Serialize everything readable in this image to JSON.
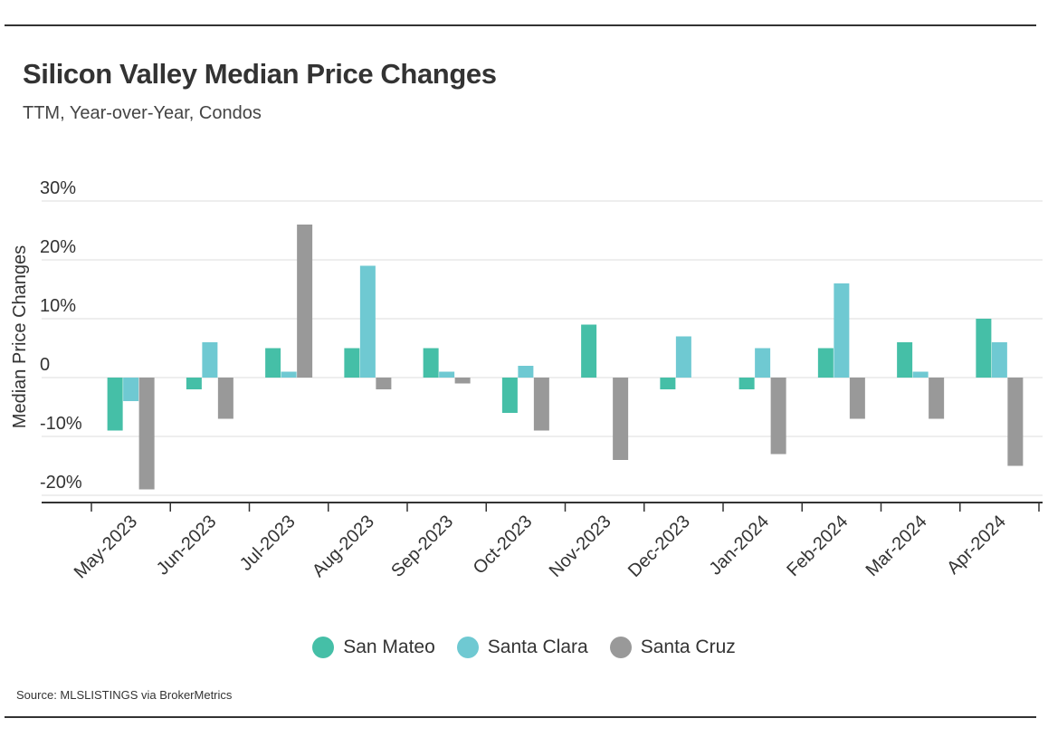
{
  "header": {
    "title": "Silicon Valley Median Price Changes",
    "subtitle": "TTM, Year-over-Year, Condos"
  },
  "source": "Source:  MLSLISTINGS via BrokerMetrics",
  "colors": {
    "San Mateo": "#45bfa7",
    "Santa Clara": "#6fc9d2",
    "Santa Cruz": "#999999",
    "grid": "#dddddd",
    "axis": "#333333"
  },
  "chart_data": {
    "type": "bar",
    "title": "Silicon Valley Median Price Changes",
    "subtitle": "TTM, Year-over-Year, Condos",
    "xlabel": "",
    "ylabel": "Median Price Changes",
    "ylim": [
      -22,
      30
    ],
    "yticks": [
      -20,
      -10,
      0,
      10,
      20,
      30
    ],
    "ytick_labels": [
      "-20%",
      "-10%",
      "0",
      "10%",
      "20%",
      "30%"
    ],
    "grid": true,
    "legend_position": "bottom",
    "categories": [
      "May-2023",
      "Jun-2023",
      "Jul-2023",
      "Aug-2023",
      "Sep-2023",
      "Oct-2023",
      "Nov-2023",
      "Dec-2023",
      "Jan-2024",
      "Feb-2024",
      "Mar-2024",
      "Apr-2024"
    ],
    "series": [
      {
        "name": "San Mateo",
        "values": [
          -9,
          -2,
          5,
          5,
          5,
          -6,
          9,
          -2,
          -2,
          5,
          6,
          10
        ]
      },
      {
        "name": "Santa Clara",
        "values": [
          -4,
          6,
          1,
          19,
          1,
          2,
          0,
          7,
          5,
          16,
          1,
          6
        ]
      },
      {
        "name": "Santa Cruz",
        "values": [
          -19,
          -7,
          26,
          -2,
          -1,
          -9,
          -14,
          0,
          -13,
          -7,
          -7,
          -15
        ]
      }
    ]
  }
}
